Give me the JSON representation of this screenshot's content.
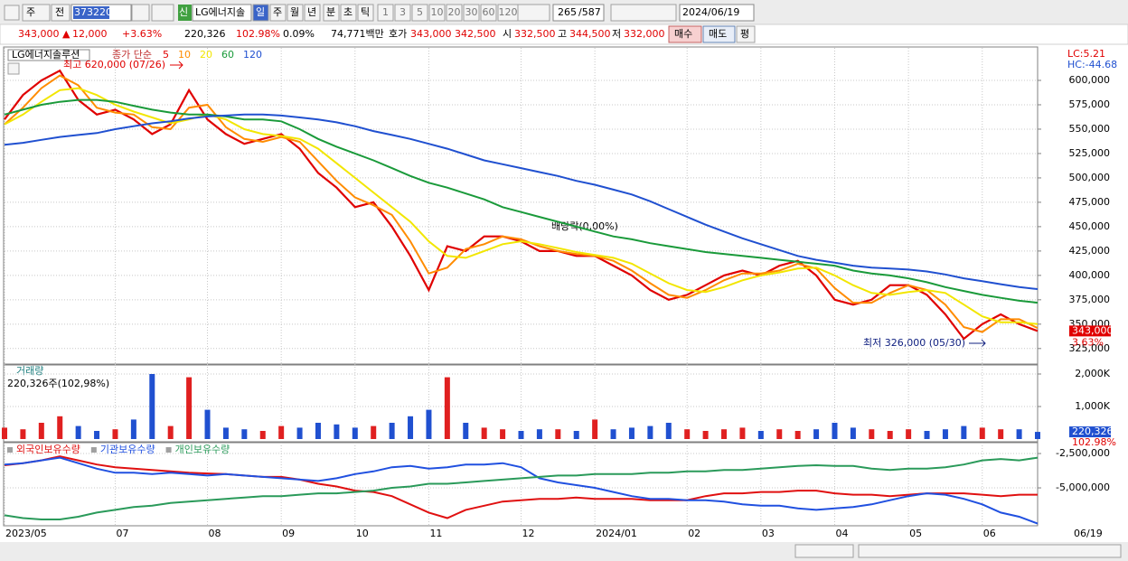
{
  "toolbar": {
    "period_button": "주",
    "prev": "전",
    "code": "373220",
    "name": "LG에너지솔",
    "new_tag": "신",
    "periods": [
      "일",
      "주",
      "월",
      "년",
      "분",
      "초",
      "틱"
    ],
    "intervals": [
      "1",
      "3",
      "5",
      "10",
      "20",
      "30",
      "60",
      "120"
    ],
    "count": "265",
    "total": "/587",
    "date": "2024/06/19"
  },
  "info_bar": {
    "price": "343,000 ▲",
    "change": "12,000",
    "rate": "+3.63%",
    "volume": "220,326",
    "volume_ratio": "102.98%",
    "turnover": "0.09%",
    "amount": "74,771백만",
    "quote_label": "호가",
    "ask": "343,000",
    "bid": "342,500",
    "open_label": "시",
    "open": "332,500",
    "high_label": "고",
    "high": "344,500",
    "low_label": "저",
    "low": "332,000",
    "buy": "매수",
    "sell": "매도",
    "avg": "평"
  },
  "chart_data": [
    {
      "type": "line",
      "title": "LG에너지솔루션",
      "legend_prefix": "종가 단순",
      "grid": true,
      "series": [
        {
          "name": "5",
          "color": "#e00000",
          "values": [
            560000,
            585000,
            600000,
            610000,
            580000,
            565000,
            570000,
            560000,
            545000,
            555000,
            590000,
            560000,
            545000,
            535000,
            540000,
            545000,
            530000,
            505000,
            490000,
            470000,
            475000,
            450000,
            420000,
            385000,
            430000,
            425000,
            440000,
            440000,
            435000,
            425000,
            425000,
            420000,
            420000,
            410000,
            400000,
            385000,
            375000,
            380000,
            390000,
            400000,
            405000,
            400000,
            410000,
            415000,
            400000,
            375000,
            370000,
            375000,
            390000,
            390000,
            380000,
            360000,
            335000,
            350000,
            360000,
            350000,
            343000
          ]
        },
        {
          "name": "10",
          "color": "#ff8c00",
          "values": [
            555000,
            572000,
            592000,
            605000,
            595000,
            572000,
            567000,
            565000,
            552000,
            550000,
            572000,
            575000,
            552000,
            540000,
            537000,
            542000,
            537000,
            517000,
            497000,
            480000,
            472000,
            462000,
            435000,
            402000,
            408000,
            427000,
            432000,
            440000,
            437000,
            430000,
            425000,
            422000,
            420000,
            415000,
            405000,
            392000,
            380000,
            377000,
            385000,
            395000,
            402000,
            402000,
            405000,
            412000,
            407000,
            387000,
            372000,
            372000,
            382000,
            390000,
            385000,
            370000,
            347000,
            342000,
            355000,
            355000,
            346000
          ]
        },
        {
          "name": "20",
          "color": "#f2e600",
          "values": [
            555000,
            565000,
            578000,
            590000,
            592000,
            585000,
            575000,
            568000,
            562000,
            556000,
            560000,
            565000,
            560000,
            550000,
            545000,
            543000,
            540000,
            530000,
            515000,
            500000,
            485000,
            470000,
            455000,
            435000,
            420000,
            418000,
            425000,
            432000,
            435000,
            432000,
            428000,
            424000,
            421000,
            418000,
            412000,
            402000,
            392000,
            385000,
            383000,
            388000,
            395000,
            400000,
            403000,
            407000,
            408000,
            400000,
            390000,
            382000,
            380000,
            383000,
            385000,
            382000,
            370000,
            358000,
            352000,
            352000,
            350000
          ]
        },
        {
          "name": "60",
          "color": "#1a9a3a",
          "values": [
            565000,
            570000,
            575000,
            578000,
            580000,
            580000,
            578000,
            574000,
            570000,
            567000,
            565000,
            565000,
            563000,
            560000,
            560000,
            558000,
            550000,
            540000,
            532000,
            525000,
            518000,
            510000,
            502000,
            495000,
            490000,
            484000,
            478000,
            470000,
            465000,
            460000,
            455000,
            450000,
            445000,
            440000,
            437000,
            433000,
            430000,
            427000,
            424000,
            422000,
            420000,
            418000,
            416000,
            414000,
            412000,
            410000,
            405000,
            402000,
            400000,
            397000,
            393000,
            388000,
            384000,
            380000,
            377000,
            374000,
            372000
          ]
        },
        {
          "name": "120",
          "color": "#2050d0",
          "values": [
            534000,
            536000,
            539000,
            542000,
            544000,
            546000,
            550000,
            553000,
            556000,
            558000,
            561000,
            563000,
            564000,
            565000,
            565000,
            564000,
            562000,
            560000,
            557000,
            553000,
            548000,
            544000,
            540000,
            535000,
            530000,
            524000,
            518000,
            514000,
            510000,
            506000,
            502000,
            497000,
            493000,
            488000,
            483000,
            476000,
            468000,
            460000,
            452000,
            445000,
            438000,
            432000,
            426000,
            420000,
            416000,
            413000,
            410000,
            408000,
            407000,
            406000,
            404000,
            401000,
            397000,
            394000,
            391000,
            388000,
            386000
          ]
        }
      ],
      "ylim": [
        310000,
        631500
      ],
      "yticks": [
        {
          "value": 325000,
          "label": "325,000"
        },
        {
          "value": 350000,
          "label": "350,000"
        },
        {
          "value": 375000,
          "label": "375,000"
        },
        {
          "value": 400000,
          "label": "400,000"
        },
        {
          "value": 425000,
          "label": "425,000"
        },
        {
          "value": 450000,
          "label": "450,000"
        },
        {
          "value": 475000,
          "label": "475,000"
        },
        {
          "value": 500000,
          "label": "500,000"
        },
        {
          "value": 525000,
          "label": "525,000"
        },
        {
          "value": 550000,
          "label": "550,000"
        },
        {
          "value": 575000,
          "label": "575,000"
        },
        {
          "value": 600000,
          "label": "600,000"
        }
      ],
      "last_price": {
        "value": 343000,
        "label": "343,000"
      },
      "last_rate": "3.63%",
      "lc": "LC:5.21",
      "hc": "HC:-44.68",
      "annotations": {
        "high": "최고 620,000 (07/26)",
        "low": "최저 326,000 (05/30)",
        "dividend": "배당락(0,00%)"
      }
    },
    {
      "type": "bar",
      "title": "거래량",
      "subtitle": "220,326주(102,98%)",
      "up_color": "#e02020",
      "down_color": "#2050d0",
      "values": [
        350000,
        300000,
        500000,
        700000,
        400000,
        250000,
        300000,
        600000,
        2000000,
        400000,
        1900000,
        900000,
        350000,
        300000,
        250000,
        400000,
        350000,
        500000,
        450000,
        350000,
        400000,
        500000,
        700000,
        900000,
        1900000,
        500000,
        350000,
        300000,
        250000,
        300000,
        300000,
        250000,
        600000,
        300000,
        350000,
        400000,
        500000,
        300000,
        250000,
        300000,
        350000,
        250000,
        300000,
        250000,
        300000,
        500000,
        350000,
        300000,
        250000,
        300000,
        250000,
        300000,
        400000,
        350000,
        300000,
        300000,
        220326
      ],
      "value_labels": [
        null,
        null,
        null,
        null,
        null,
        null,
        null,
        null,
        null,
        null,
        null,
        null,
        null,
        null,
        null,
        null,
        null,
        null,
        null,
        null,
        null,
        null,
        null,
        null,
        null,
        null,
        null,
        null,
        null,
        null,
        null,
        null,
        null,
        null,
        null,
        null,
        null,
        null,
        null,
        null,
        null,
        null,
        null,
        null,
        null,
        null,
        null,
        null,
        null,
        null,
        null,
        null,
        null,
        null,
        null,
        null,
        "220,326"
      ],
      "last_ratio": "102.98%",
      "ylim": [
        0,
        2250000
      ],
      "yticks": [
        {
          "value": 1000000,
          "label": "1,000K"
        },
        {
          "value": 2000000,
          "label": "2,000K"
        }
      ]
    },
    {
      "type": "line",
      "grid": true,
      "categories": [
        "2023/05",
        null,
        null,
        null,
        null,
        null,
        "07",
        null,
        null,
        null,
        null,
        "08",
        null,
        null,
        null,
        "09",
        null,
        null,
        null,
        "10",
        null,
        null,
        null,
        "11",
        null,
        null,
        null,
        null,
        "12",
        null,
        null,
        null,
        "2024/01",
        null,
        null,
        null,
        null,
        "02",
        null,
        null,
        null,
        "03",
        null,
        null,
        null,
        "04",
        null,
        null,
        null,
        "05",
        null,
        null,
        null,
        "06",
        null,
        null,
        null
      ],
      "end_label": "06/19",
      "series": [
        {
          "name": "외국인보유수량",
          "color": "#e01010",
          "values": [
            -3350000,
            -3200000,
            -3000000,
            -2700000,
            -3000000,
            -3300000,
            -3500000,
            -3600000,
            -3700000,
            -3800000,
            -3900000,
            -3950000,
            -4000000,
            -4100000,
            -4200000,
            -4200000,
            -4400000,
            -4700000,
            -4900000,
            -5200000,
            -5300000,
            -5600000,
            -6200000,
            -6800000,
            -7200000,
            -6600000,
            -6300000,
            -6000000,
            -5900000,
            -5800000,
            -5800000,
            -5700000,
            -5800000,
            -5800000,
            -5800000,
            -5900000,
            -5900000,
            -5900000,
            -5600000,
            -5400000,
            -5400000,
            -5300000,
            -5300000,
            -5200000,
            -5200000,
            -5400000,
            -5500000,
            -5500000,
            -5600000,
            -5500000,
            -5400000,
            -5400000,
            -5400000,
            -5500000,
            -5600000,
            -5500000,
            -5500000
          ]
        },
        {
          "name": "기관보유수량",
          "color": "#2050e0",
          "values": [
            -3300000,
            -3200000,
            -3000000,
            -2800000,
            -3200000,
            -3600000,
            -3900000,
            -3900000,
            -4000000,
            -3900000,
            -4000000,
            -4100000,
            -4000000,
            -4100000,
            -4200000,
            -4300000,
            -4400000,
            -4500000,
            -4300000,
            -4000000,
            -3800000,
            -3500000,
            -3400000,
            -3600000,
            -3500000,
            -3300000,
            -3300000,
            -3200000,
            -3500000,
            -4300000,
            -4600000,
            -4800000,
            -5000000,
            -5300000,
            -5600000,
            -5800000,
            -5800000,
            -5900000,
            -5900000,
            -6000000,
            -6200000,
            -6300000,
            -6300000,
            -6500000,
            -6600000,
            -6500000,
            -6400000,
            -6200000,
            -5900000,
            -5600000,
            -5400000,
            -5500000,
            -5800000,
            -6200000,
            -6800000,
            -7100000,
            -7600000
          ]
        },
        {
          "name": "개인보유수량",
          "color": "#2a9a5a",
          "values": [
            -7000000,
            -7200000,
            -7300000,
            -7300000,
            -7100000,
            -6800000,
            -6600000,
            -6400000,
            -6300000,
            -6100000,
            -6000000,
            -5900000,
            -5800000,
            -5700000,
            -5600000,
            -5600000,
            -5500000,
            -5400000,
            -5400000,
            -5300000,
            -5200000,
            -5000000,
            -4900000,
            -4700000,
            -4700000,
            -4600000,
            -4500000,
            -4400000,
            -4300000,
            -4200000,
            -4100000,
            -4100000,
            -4000000,
            -4000000,
            -4000000,
            -3900000,
            -3900000,
            -3800000,
            -3800000,
            -3700000,
            -3700000,
            -3600000,
            -3500000,
            -3400000,
            -3350000,
            -3400000,
            -3400000,
            -3600000,
            -3700000,
            -3600000,
            -3600000,
            -3500000,
            -3300000,
            -3000000,
            -2900000,
            -3000000,
            -2800000
          ]
        }
      ],
      "ylim": [
        -7760000,
        -1840000
      ],
      "yticks": [
        {
          "value": -5000000,
          "label": "-5,000,000"
        },
        {
          "value": -2500000,
          "label": "-2,500,000"
        }
      ]
    }
  ]
}
